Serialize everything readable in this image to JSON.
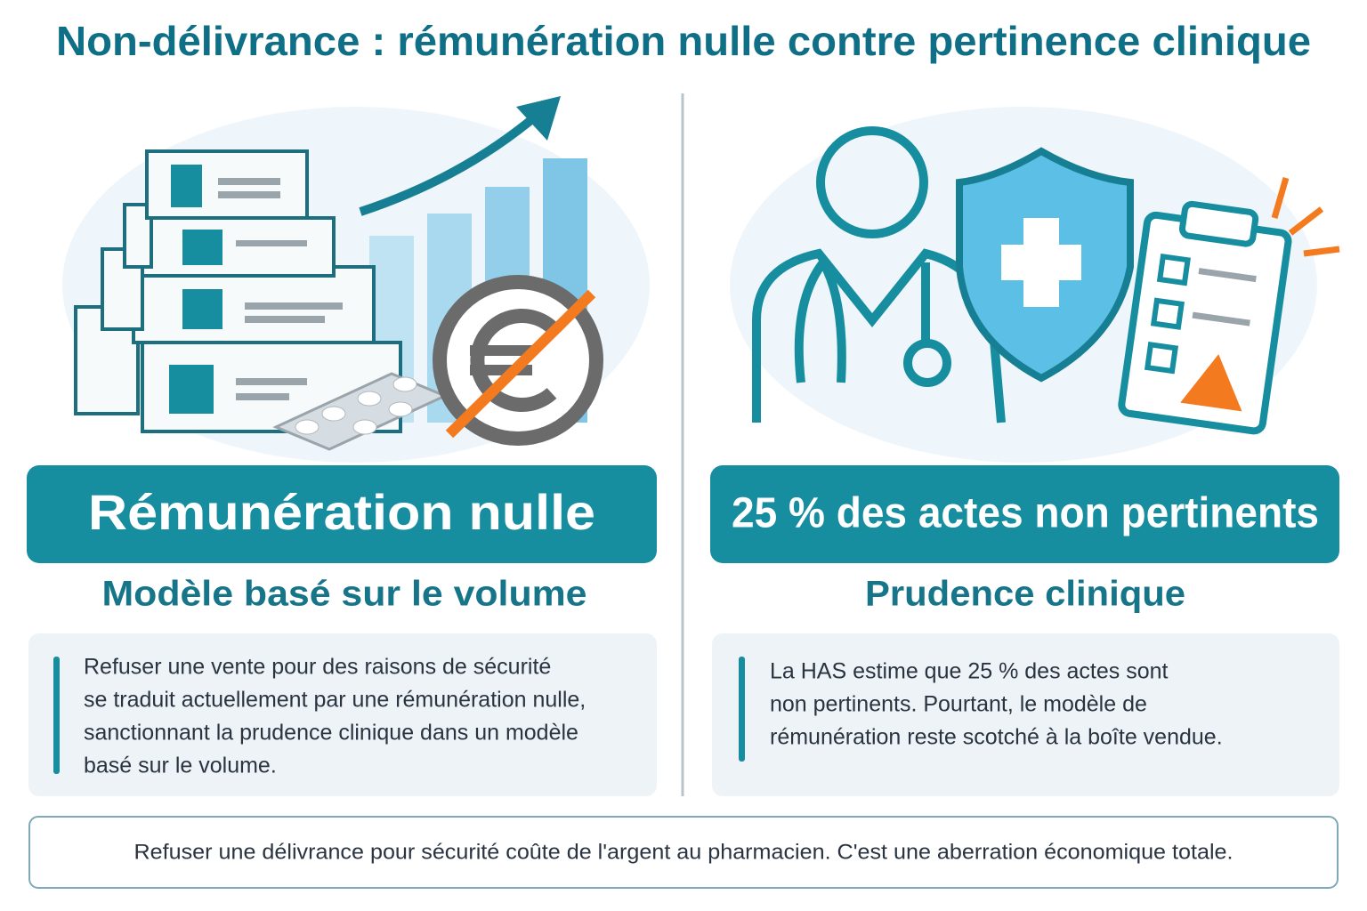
{
  "header": {
    "title": "Non-délivrance : rémunération nulle contre pertinence clinique"
  },
  "left": {
    "banner": "Rémunération nulle",
    "subtitle": "Modèle basé sur le volume",
    "text": [
      "Refuser une vente pour des raisons de sécurité",
      "se traduit actuellement par une rémunération nulle,",
      "sanctionnant la prudence clinique dans un modèle",
      "basé sur le volume."
    ]
  },
  "right": {
    "banner": "25 % des actes non pertinents",
    "subtitle": "Prudence clinique",
    "text": [
      "La HAS estime que 25 % des actes sont",
      "non pertinents. Pourtant, le modèle de",
      "rémunération reste scotché à la boîte vendue."
    ]
  },
  "footer": {
    "quote": "Refuser une délivrance pour sécurité coûte de l'argent au pharmacien. C'est une aberration économique totale."
  }
}
